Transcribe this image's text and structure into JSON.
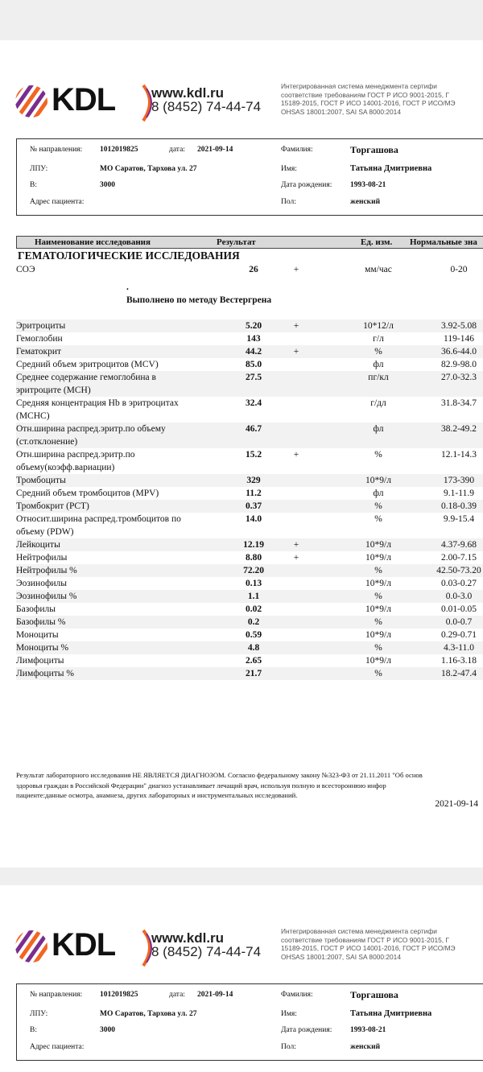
{
  "header": {
    "logo": "KDL",
    "url": "www.kdl.ru",
    "phone": "8 (8452) 74-44-74",
    "certification": [
      "Интегрированная   система   менеджмента   сертифи",
      "соответствие  требованиям  ГОСТ  Р  ИСО  9001-2015,  Г",
      "15189-2015, ГОСТ Р ИСО 14001-2016, ГОСТ Р ИСО/МЭ",
      "OHSAS 18001:2007, SAI SA 8000:2014"
    ]
  },
  "patient": {
    "referral_label": "№ направления:",
    "referral": "1012019825",
    "date_label": "дата:",
    "date": "2021-09-14",
    "clinic_label": "ЛПУ:",
    "clinic": "МО Саратов, Тархова ул. 27",
    "v_label": "В:",
    "v": "3000",
    "address_label": "Адрес пациента:",
    "surname_label": "Фамилия:",
    "surname": "Торгашова",
    "name_label": "Имя:",
    "name": "Татьяна Дмитриевна",
    "birth_label": "Дата рождения:",
    "birth": "1993-08-21",
    "sex_label": "Пол:",
    "sex": "женский"
  },
  "table": {
    "columns": [
      "Наименование исследования",
      "Результат",
      "Ед. изм.",
      "Нормальные зна"
    ],
    "section": "ГЕМАТОЛОГИЧЕСКИЕ ИССЛЕДОВАНИЯ",
    "note_mark": ".",
    "note": "Выполнено по методу Вестергрена",
    "rows": [
      [
        "СОЭ",
        "26",
        "+",
        "мм/час",
        "0-20"
      ],
      [
        "Эритроциты",
        "5.20",
        "+",
        "10*12/л",
        "3.92-5.08"
      ],
      [
        "Гемоглобин",
        "143",
        null,
        "г/л",
        "119-146"
      ],
      [
        "Гематокрит",
        "44.2",
        "+",
        "%",
        "36.6-44.0"
      ],
      [
        "Средний объем эритроцитов (MCV)",
        "85.0",
        null,
        "фл",
        "82.9-98.0"
      ],
      [
        "Среднее содержание гемоглобина в эритроците (MCH)",
        "27.5",
        null,
        "пг/кл",
        "27.0-32.3"
      ],
      [
        "Средняя концентрация Hb в эритроцитах (MCHC)",
        "32.4",
        null,
        "г/дл",
        "31.8-34.7"
      ],
      [
        "Отн.ширина распред.эритр.по объему (ст.отклонение)",
        "46.7",
        null,
        "фл",
        "38.2-49.2"
      ],
      [
        "Отн.ширина распред.эритр.по объему(коэфф.вариации)",
        "15.2",
        "+",
        "%",
        "12.1-14.3"
      ],
      [
        "Тромбоциты",
        "329",
        null,
        "10*9/л",
        "173-390"
      ],
      [
        "Средний объем тромбоцитов (MPV)",
        "11.2",
        null,
        "фл",
        "9.1-11.9"
      ],
      [
        "Тромбокрит (PCT)",
        "0.37",
        null,
        "%",
        "0.18-0.39"
      ],
      [
        "Относит.ширина распред.тромбоцитов по объему (PDW)",
        "14.0",
        null,
        "%",
        "9.9-15.4"
      ],
      [
        "Лейкоциты",
        "12.19",
        "+",
        "10*9/л",
        "4.37-9.68"
      ],
      [
        "Нейтрофилы",
        "8.80",
        "+",
        "10*9/л",
        "2.00-7.15"
      ],
      [
        "Нейтрофилы %",
        "72.20",
        null,
        "%",
        "42.50-73.20"
      ],
      [
        "Эозинофилы",
        "0.13",
        null,
        "10*9/л",
        "0.03-0.27"
      ],
      [
        "Эозинофилы %",
        "1.1",
        null,
        "%",
        "0.0-3.0"
      ],
      [
        "Базофилы",
        "0.02",
        null,
        "10*9/л",
        "0.01-0.05"
      ],
      [
        "Базофилы %",
        "0.2",
        null,
        "%",
        "0.0-0.7"
      ],
      [
        "Моноциты",
        "0.59",
        null,
        "10*9/л",
        "0.29-0.71"
      ],
      [
        "Моноциты %",
        "4.8",
        null,
        "%",
        "4.3-11.0"
      ],
      [
        "Лимфоциты",
        "2.65",
        null,
        "10*9/л",
        "1.16-3.18"
      ],
      [
        "Лимфоциты %",
        "21.7",
        null,
        "%",
        "18.2-47.4"
      ]
    ]
  },
  "footer": {
    "disclaimer": [
      "Результат лабораторного исследования НЕ ЯВЛЯЕТСЯ ДИАГНОЗОМ. Согласно федеральному закону №323-ФЗ от 21.11.2011 \"Об основ",
      "здоровья  граждан  в  Российской  Федерации\"  диагноз  устанавливает  лечащий  врач,  используя  полную  и  всестороннюю  инфор",
      "пациенте:данные осмотра, анамнеза, других лабораторных и инструментальных исследований."
    ],
    "date": "2021-09-14"
  }
}
